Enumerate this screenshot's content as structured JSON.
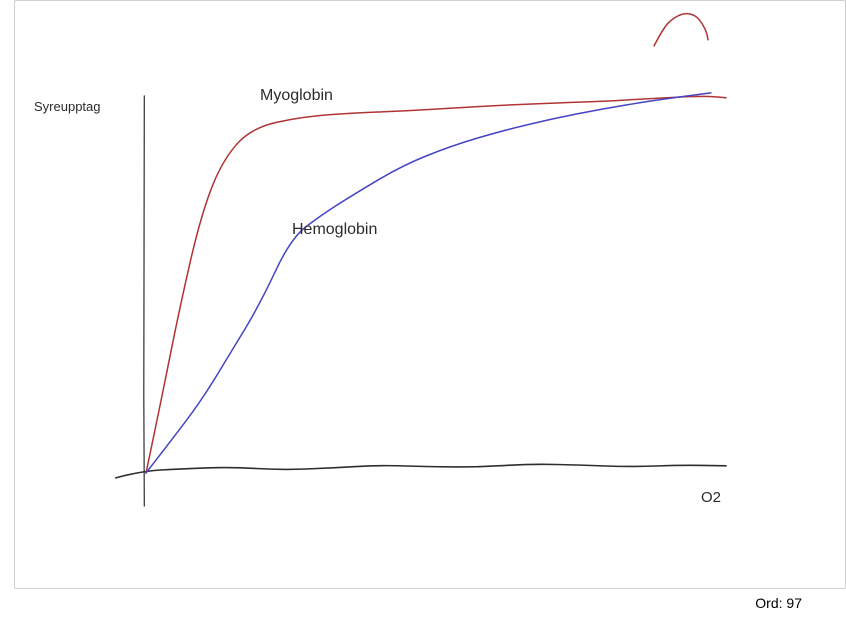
{
  "canvas": {
    "background": "#ffffff",
    "border_color": "#cfcfcf"
  },
  "labels": {
    "ylabel": "Syreupptag",
    "xlabel": "O2",
    "series_myoglobin": "Myoglobin",
    "series_hemoglobin": "Hemoglobin"
  },
  "status": {
    "word_count": "Ord: 97"
  },
  "chart_data": {
    "type": "line",
    "title": "",
    "xlabel": "O2",
    "ylabel": "Syreupptag",
    "x_unit": "relative O2 partial pressure (axis unlabeled, 0-100)",
    "y_unit": "relative oxygen uptake / saturation (axis unlabeled, 0-100)",
    "xlim": [
      0,
      100
    ],
    "ylim": [
      0,
      100
    ],
    "grid": false,
    "legend": "inline labels next to curves",
    "style": "hand-drawn freehand sketch",
    "series": [
      {
        "name": "Myoglobin",
        "color": "#b03434",
        "points": [
          [
            0,
            0
          ],
          [
            2.6,
            19
          ],
          [
            6,
            45
          ],
          [
            9.5,
            68
          ],
          [
            13,
            82
          ],
          [
            18,
            91
          ],
          [
            27,
            94
          ],
          [
            36,
            95
          ],
          [
            44,
            95.5
          ],
          [
            52,
            96.2
          ],
          [
            61,
            97
          ],
          [
            70,
            97.6
          ],
          [
            78,
            98
          ],
          [
            87,
            98.8
          ],
          [
            96,
            99.5
          ],
          [
            100,
            99
          ]
        ]
      },
      {
        "name": "Hemoglobin",
        "color": "#4444c4",
        "points": [
          [
            0,
            0
          ],
          [
            4.3,
            8.5
          ],
          [
            9.5,
            19
          ],
          [
            14.7,
            32
          ],
          [
            19.8,
            45
          ],
          [
            25,
            62
          ],
          [
            30.2,
            68
          ],
          [
            35.3,
            73
          ],
          [
            44,
            81
          ],
          [
            52.6,
            86.3
          ],
          [
            61.2,
            90.2
          ],
          [
            69.8,
            93.4
          ],
          [
            78.4,
            96
          ],
          [
            87.1,
            98.2
          ],
          [
            97.4,
            100.3
          ]
        ]
      }
    ],
    "axis_strokes": {
      "color": "#2e2e2e",
      "y_axis": [
        [
          -0.3,
          99.5
        ],
        [
          -0.45,
          50
        ],
        [
          -0.3,
          -8.7
        ]
      ],
      "x_baseline": [
        [
          -5.2,
          -1.3
        ],
        [
          -0.9,
          0.5
        ],
        [
          6,
          1.1
        ],
        [
          14.7,
          1.6
        ],
        [
          23.3,
          0.8
        ],
        [
          31.9,
          1.3
        ],
        [
          40.5,
          2.1
        ],
        [
          49.1,
          1.6
        ],
        [
          57.8,
          1.6
        ],
        [
          66.4,
          2.4
        ],
        [
          75,
          2.1
        ],
        [
          83.6,
          1.6
        ],
        [
          92.2,
          2.1
        ],
        [
          100,
          1.9
        ]
      ]
    },
    "decorations": [
      {
        "name": "red-scribble-top-right",
        "color": "#b03434",
        "points": [
          [
            87.6,
            112.7
          ],
          [
            89.1,
            117.2
          ],
          [
            90.9,
            120.1
          ],
          [
            92.9,
            121.4
          ],
          [
            94.7,
            120.8
          ],
          [
            95.9,
            118.7
          ],
          [
            96.7,
            116.1
          ],
          [
            96.9,
            114.3
          ]
        ]
      }
    ]
  }
}
